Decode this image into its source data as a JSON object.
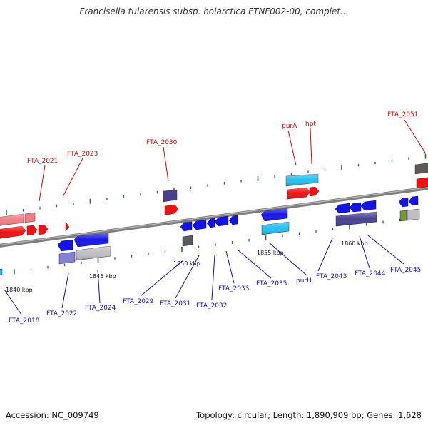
{
  "title": "Francisella tularensis subsp. holarctica FTNF002-00, complet...",
  "footer": {
    "accession": "Accession: NC_009749",
    "summary": "Topology: circular; Length: 1,890,909 bp; Genes: 1,628"
  },
  "scale_labels": [
    "1840 kbp",
    "1845 kbp",
    "1850 kbp",
    "1855 kbp",
    "1860 kbp"
  ],
  "forward_gene_labels": [
    "FTA_2021",
    "FTA_2023",
    "FTA_2030",
    "purA",
    "hpt",
    "FTA_2051"
  ],
  "reverse_gene_labels": [
    "FTA_2018",
    "FTA_2022",
    "FTA_2024",
    "FTA_2029",
    "FTA_2031",
    "FTA_2032",
    "FTA_2033",
    "FTA_2035",
    "purH",
    "FTA_2043",
    "FTA_2044",
    "FTA_2045"
  ],
  "colors": {
    "backbone": "#808080",
    "forward_cds": "#ee1111",
    "forward_cds_light": "#f07e86",
    "reverse_cds": "#1414e6",
    "rna_cyan": "#22bfee",
    "navy_feature": "#46408f",
    "gray_feature": "#bfbfbf",
    "dark_gray_feature": "#5a5a5a",
    "olive_feature": "#779933",
    "tick_green": "#1a7a1a",
    "forward_label": "#e00000",
    "reverse_label": "#1010b8"
  }
}
